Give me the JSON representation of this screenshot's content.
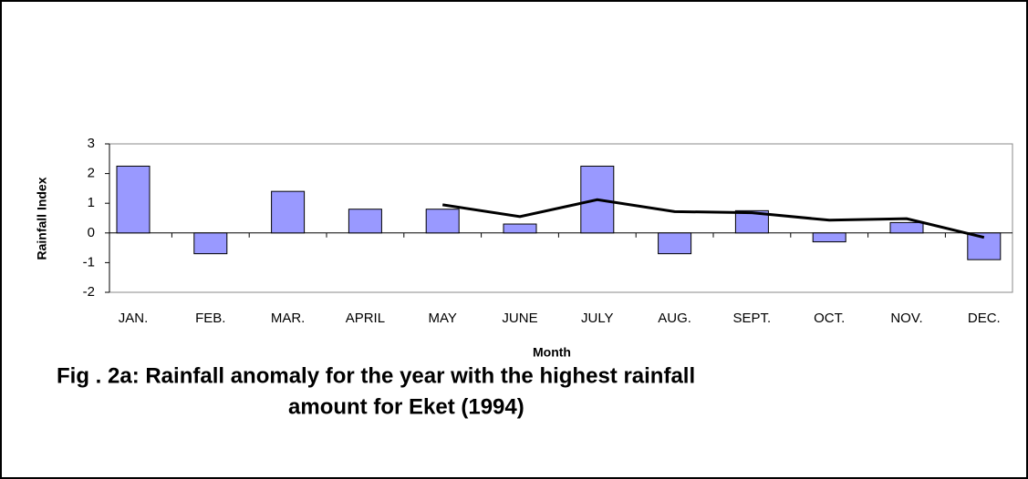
{
  "chart_data": {
    "type": "bar",
    "title": [
      "Fig . 2a: Rainfall anomaly for the year with the highest rainfall",
      "amount for Eket (1994)"
    ],
    "x_label": "Month",
    "y_label": "Rainfall Index",
    "categories": [
      "JAN.",
      "FEB.",
      "MAR.",
      "APRIL",
      "MAY",
      "JUNE",
      "JULY",
      "AUG.",
      "SEPT.",
      "OCT.",
      "NOV.",
      "DEC."
    ],
    "series": [
      {
        "type": "bar",
        "color": "#9999ff",
        "values": [
          2.25,
          -0.7,
          1.4,
          0.8,
          0.8,
          0.3,
          2.25,
          -0.7,
          0.75,
          -0.3,
          0.35,
          -0.9
        ]
      },
      {
        "type": "line",
        "color": "#000000",
        "values": [
          null,
          null,
          null,
          null,
          0.95,
          0.55,
          1.12,
          0.72,
          0.68,
          0.43,
          0.48,
          -0.15
        ]
      }
    ],
    "ylim": [
      -2,
      3
    ],
    "yticks": [
      -2,
      -1,
      0,
      1,
      2,
      3
    ]
  }
}
